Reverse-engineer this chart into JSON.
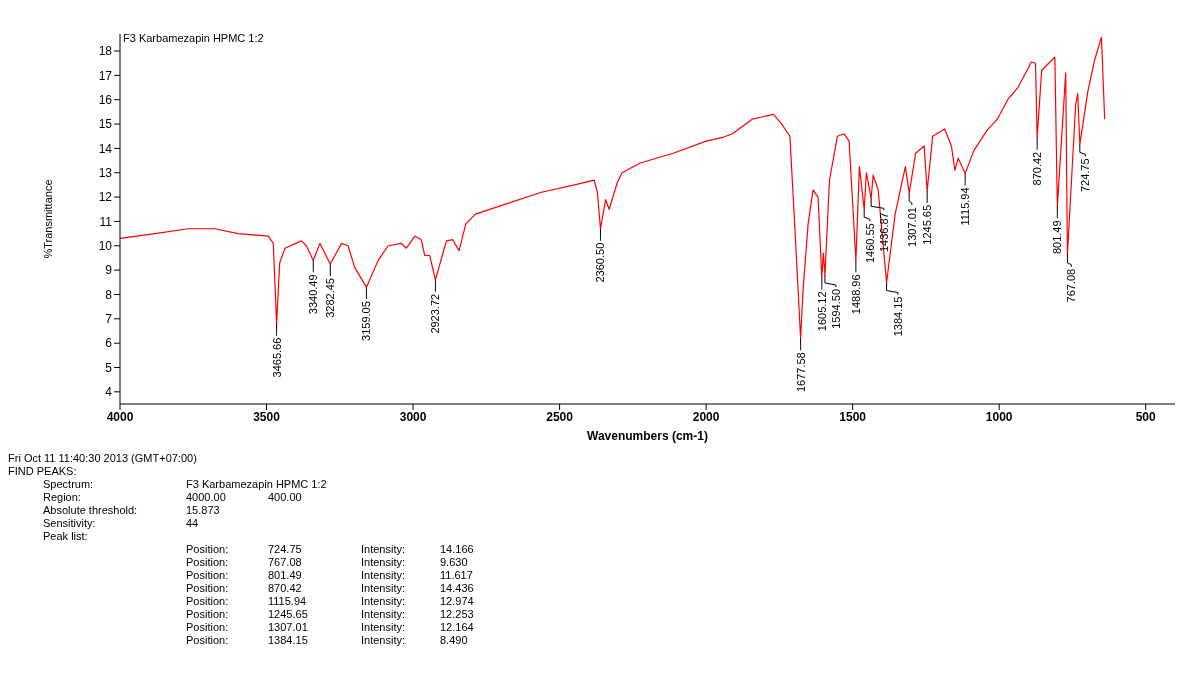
{
  "chart_data": {
    "type": "line",
    "title": "F3 Karbamezapin HPMC 1:2",
    "xlabel": "Wavenumbers (cm-1)",
    "ylabel": "%Transmittance",
    "x": [
      4000,
      3881,
      3767,
      3676,
      3597,
      3494,
      3477,
      3465.66,
      3455,
      3437,
      3381,
      3364,
      3340.49,
      3318,
      3282.45,
      3244,
      3222,
      3199,
      3159.05,
      3119,
      3085,
      3040,
      3023,
      2994,
      2972,
      2960,
      2943,
      2923.72,
      2886,
      2865,
      2843,
      2820,
      2787,
      2674,
      2562,
      2449,
      2382,
      2371,
      2360.5,
      2343,
      2331,
      2303,
      2287,
      2225,
      2112,
      2000,
      1944,
      1910,
      1843,
      1770,
      1742,
      1714,
      1697,
      1677.58,
      1669,
      1652,
      1635,
      1618,
      1605.12,
      1600,
      1594.5,
      1579,
      1552,
      1529,
      1512,
      1488.96,
      1477,
      1460.55,
      1453,
      1436.87,
      1430,
      1413,
      1384.15,
      1355,
      1320,
      1307.01,
      1285,
      1256,
      1245.65,
      1227,
      1186,
      1163,
      1151,
      1140,
      1115.94,
      1087,
      1041,
      1006,
      971,
      936,
      890,
      876,
      870.42,
      855,
      831,
      810,
      801.49,
      773,
      767.08,
      739,
      732,
      724.75,
      698,
      675,
      651,
      640
    ],
    "series": [
      {
        "color": "#ff0000",
        "values": [
          10.3,
          10.5,
          10.7,
          10.7,
          10.5,
          10.4,
          10.1,
          6.8,
          9.3,
          9.9,
          10.2,
          10.0,
          9.4,
          10.1,
          9.25,
          10.1,
          10.0,
          9.1,
          8.3,
          9.4,
          10.0,
          10.1,
          9.9,
          10.4,
          10.25,
          9.6,
          9.6,
          8.6,
          10.2,
          10.25,
          9.8,
          10.9,
          11.3,
          11.75,
          12.2,
          12.5,
          12.7,
          12.2,
          10.7,
          11.9,
          11.5,
          12.6,
          13.0,
          13.4,
          13.8,
          14.3,
          14.45,
          14.6,
          15.2,
          15.4,
          15.0,
          14.5,
          10.7,
          6.2,
          8.2,
          10.9,
          12.3,
          12.0,
          8.7,
          9.7,
          8.8,
          12.7,
          14.5,
          14.6,
          14.3,
          9.4,
          13.25,
          11.5,
          13.0,
          11.95,
          12.9,
          12.3,
          8.49,
          11.3,
          13.25,
          12.164,
          13.8,
          14.1,
          12.253,
          14.5,
          14.8,
          14.1,
          13.1,
          13.6,
          12.974,
          13.9,
          14.75,
          15.2,
          16.0,
          16.5,
          17.55,
          17.5,
          14.436,
          17.2,
          17.5,
          17.75,
          11.617,
          17.1,
          9.63,
          15.8,
          16.25,
          14.166,
          16.3,
          17.6,
          18.57,
          15.2
        ]
      }
    ],
    "xlim": [
      4000,
      400
    ],
    "xticks": [
      4000,
      3500,
      3000,
      2500,
      2000,
      1500,
      1000,
      500
    ],
    "ylim": [
      3.5,
      18.7
    ],
    "yticks": [
      4,
      5,
      6,
      7,
      8,
      9,
      10,
      11,
      12,
      13,
      14,
      15,
      16,
      17,
      18
    ],
    "annotations": [
      {
        "text": "3465.66",
        "x": 3465.66,
        "y": 6.8
      },
      {
        "text": "3340.49",
        "x": 3340.49,
        "y": 9.4
      },
      {
        "text": "3282.45",
        "x": 3282.45,
        "y": 9.25
      },
      {
        "text": "3159.05",
        "x": 3159.05,
        "y": 8.3
      },
      {
        "text": "2923.72",
        "x": 2923.72,
        "y": 8.6
      },
      {
        "text": "2360.50",
        "x": 2360.5,
        "y": 10.7
      },
      {
        "text": "1677.58",
        "x": 1677.58,
        "y": 6.2
      },
      {
        "text": "1605.12",
        "x": 1605.12,
        "y": 8.7
      },
      {
        "text": "1594.50",
        "x": 1594.5,
        "y": 8.8
      },
      {
        "text": "1488.96",
        "x": 1488.96,
        "y": 9.4
      },
      {
        "text": "1460.55",
        "x": 1460.55,
        "y": 11.5
      },
      {
        "text": "1436.87",
        "x": 1436.87,
        "y": 11.95
      },
      {
        "text": "1384.15",
        "x": 1384.15,
        "y": 8.49
      },
      {
        "text": "1307.01",
        "x": 1307.01,
        "y": 12.164
      },
      {
        "text": "1245.65",
        "x": 1245.65,
        "y": 12.253
      },
      {
        "text": "1115.94",
        "x": 1115.94,
        "y": 12.974
      },
      {
        "text": "870.42",
        "x": 870.42,
        "y": 14.436
      },
      {
        "text": "801.49",
        "x": 801.49,
        "y": 11.617
      },
      {
        "text": "767.08",
        "x": 767.08,
        "y": 9.63
      },
      {
        "text": "724.75",
        "x": 724.75,
        "y": 14.166
      },
      "Fri Oct 11 11:40:30 2013 (GMT+07:00)",
      "FIND PEAKS:",
      "\tSpectrum:\tF3 Karbamezapin HPMC 1:2",
      "\tRegion:\t4000.00\t400.00",
      "\tAbsolute threshold:\t15.873",
      "\tSensitivity:\t44",
      "\tPeak list:",
      "\t\tPosition:\t724.75\tIntensity:\t14.166",
      "\t\tPosition:\t767.08\tIntensity:\t9.630",
      "\t\tPosition:\t801.49\tIntensity:\t11.617",
      "\t\tPosition:\t870.42\tIntensity:\t14.436",
      "\t\tPosition:\t1115.94\tIntensity:\t12.974",
      "\t\tPosition:\t1245.65\tIntensity:\t12.253",
      "\t\tPosition:\t1307.01\tIntensity:\t12.164",
      "\t\tPosition:\t1384.15\tIntensity:\t8.490"
    ]
  }
}
